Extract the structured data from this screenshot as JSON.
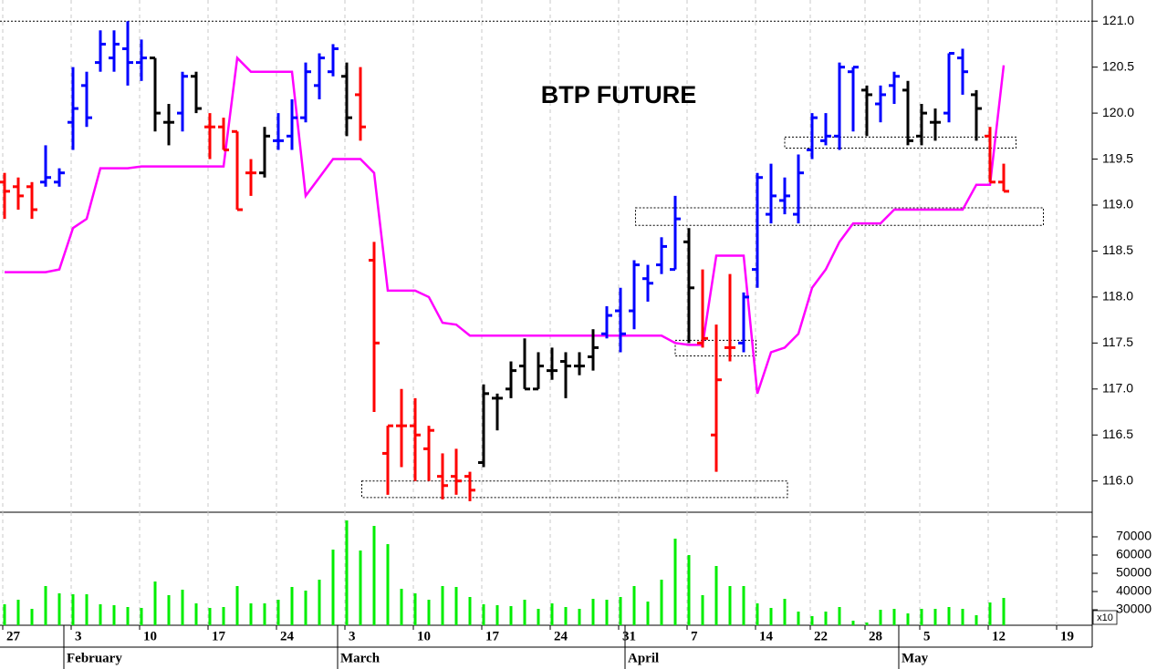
{
  "chart_data": {
    "type": "ohlc",
    "title": "BTP FUTURE",
    "categories": [
      "27",
      null,
      null,
      null,
      null,
      "3",
      null,
      null,
      null,
      null,
      "10",
      null,
      null,
      null,
      null,
      "17",
      null,
      null,
      null,
      null,
      "24",
      null,
      null,
      null,
      null,
      "3",
      null,
      null,
      null,
      null,
      "10",
      null,
      null,
      null,
      null,
      "17",
      null,
      null,
      null,
      null,
      "24",
      null,
      null,
      null,
      null,
      "31",
      null,
      null,
      null,
      null,
      "7",
      null,
      null,
      null,
      null,
      "14",
      null,
      null,
      null,
      "22",
      null,
      null,
      null,
      "28",
      null,
      null,
      null,
      "5",
      null,
      null,
      null,
      null,
      "12",
      null,
      null,
      null,
      null,
      "19"
    ],
    "month_categories": [
      null,
      null,
      null,
      null,
      null,
      "February",
      null,
      null,
      null,
      null,
      null,
      null,
      null,
      null,
      null,
      null,
      null,
      null,
      null,
      null,
      null,
      null,
      null,
      null,
      null,
      "March",
      null,
      null,
      null,
      null,
      null,
      null,
      null,
      null,
      null,
      null,
      null,
      null,
      null,
      null,
      null,
      null,
      null,
      null,
      null,
      null,
      "April",
      null,
      null,
      null,
      null,
      null,
      null,
      null,
      null,
      null,
      null,
      null,
      null,
      null,
      null,
      null,
      null,
      null,
      null,
      null,
      "May",
      null,
      null,
      null,
      null,
      null,
      null,
      null,
      null,
      null,
      null,
      null
    ],
    "open": [
      119.25,
      119.2,
      119.2,
      119.25,
      119.25,
      119.9,
      120.3,
      120.55,
      120.6,
      120.7,
      120.55,
      120.6,
      119.9,
      120.0,
      120.4,
      119.85,
      119.85,
      119.8,
      119.35,
      119.35,
      119.7,
      119.75,
      119.95,
      120.3,
      120.45,
      120.4,
      120.2,
      118.4,
      116.3,
      116.6,
      116.6,
      116.35,
      116.05,
      116.05,
      116.05,
      116.2,
      116.9,
      117.0,
      117.25,
      117.0,
      117.2,
      117.3,
      117.25,
      117.35,
      117.6,
      117.85,
      117.85,
      118.2,
      118.35,
      118.3,
      118.6,
      117.5,
      116.5,
      117.45,
      117.5,
      118.3,
      118.9,
      119.05,
      118.9,
      119.6,
      119.7,
      119.75,
      120.45,
      120.25,
      120.1,
      120.3,
      120.25,
      119.75,
      119.9,
      120.0,
      120.6,
      120.2,
      119.75,
      119.25,
      null,
      null,
      null,
      null
    ],
    "high": [
      119.35,
      119.3,
      119.25,
      119.65,
      119.4,
      120.5,
      120.45,
      120.9,
      120.9,
      121.0,
      120.8,
      120.6,
      120.1,
      120.45,
      120.45,
      120.0,
      119.95,
      119.8,
      119.5,
      119.85,
      120.0,
      120.15,
      120.55,
      120.65,
      120.75,
      120.55,
      120.5,
      118.6,
      116.6,
      117.0,
      116.9,
      116.6,
      116.3,
      116.35,
      116.1,
      117.05,
      116.95,
      117.3,
      117.55,
      117.4,
      117.45,
      117.4,
      117.4,
      117.65,
      117.9,
      118.1,
      118.4,
      118.35,
      118.65,
      119.1,
      118.75,
      118.3,
      117.7,
      118.25,
      118.05,
      119.35,
      119.45,
      119.3,
      119.55,
      120.0,
      120.0,
      120.55,
      120.5,
      120.3,
      120.3,
      120.45,
      120.35,
      120.1,
      120.05,
      120.65,
      120.7,
      120.25,
      119.85,
      119.45,
      null,
      null,
      null,
      null
    ],
    "low": [
      118.85,
      118.95,
      118.85,
      119.2,
      119.2,
      119.6,
      119.85,
      120.45,
      120.45,
      120.3,
      120.35,
      119.8,
      119.65,
      119.8,
      120.0,
      119.5,
      119.6,
      118.95,
      119.1,
      119.3,
      119.6,
      119.6,
      119.9,
      120.15,
      120.4,
      119.75,
      119.7,
      116.75,
      115.85,
      116.15,
      116.0,
      116.0,
      115.8,
      115.85,
      115.78,
      116.15,
      116.55,
      116.9,
      117.0,
      117.0,
      117.1,
      116.9,
      117.15,
      117.2,
      117.55,
      117.4,
      117.65,
      117.95,
      118.25,
      118.3,
      117.5,
      117.45,
      116.1,
      117.3,
      117.4,
      118.1,
      118.8,
      118.9,
      118.8,
      119.5,
      119.65,
      119.6,
      119.8,
      119.75,
      119.9,
      120.1,
      119.65,
      119.65,
      119.7,
      119.9,
      120.2,
      119.7,
      119.25,
      119.15,
      null,
      null,
      null,
      null
    ],
    "close": [
      119.15,
      119.1,
      118.95,
      119.3,
      119.35,
      120.05,
      119.95,
      120.75,
      120.75,
      120.55,
      120.6,
      120.0,
      119.9,
      120.4,
      120.05,
      119.85,
      119.6,
      118.95,
      119.35,
      119.75,
      119.7,
      119.95,
      120.45,
      120.6,
      120.7,
      119.95,
      119.85,
      117.5,
      116.6,
      116.6,
      116.5,
      116.55,
      115.95,
      116.0,
      115.9,
      116.95,
      116.9,
      117.2,
      117.0,
      117.25,
      117.2,
      117.25,
      117.25,
      117.45,
      117.8,
      117.6,
      118.35,
      118.15,
      118.55,
      118.85,
      118.1,
      117.55,
      117.1,
      117.45,
      118.0,
      119.3,
      119.1,
      119.1,
      119.35,
      119.95,
      119.75,
      120.5,
      120.5,
      120.2,
      120.2,
      120.4,
      119.7,
      120.0,
      119.9,
      120.65,
      120.45,
      120.05,
      119.25,
      119.15,
      null,
      null,
      null,
      null
    ],
    "bar_colors": [
      "#ff0000",
      "#ff0000",
      "#ff0000",
      "#0000ff",
      "#0000ff",
      "#0000ff",
      "#0000ff",
      "#0000ff",
      "#0000ff",
      "#0000ff",
      "#0000ff",
      "#000000",
      "#000000",
      "#0000ff",
      "#000000",
      "#ff0000",
      "#ff0000",
      "#ff0000",
      "#ff0000",
      "#000000",
      "#0000ff",
      "#0000ff",
      "#0000ff",
      "#0000ff",
      "#0000ff",
      "#000000",
      "#ff0000",
      "#ff0000",
      "#ff0000",
      "#ff0000",
      "#ff0000",
      "#ff0000",
      "#ff0000",
      "#ff0000",
      "#ff0000",
      "#000000",
      "#000000",
      "#000000",
      "#000000",
      "#000000",
      "#000000",
      "#000000",
      "#000000",
      "#000000",
      "#0000ff",
      "#0000ff",
      "#0000ff",
      "#0000ff",
      "#0000ff",
      "#0000ff",
      "#000000",
      "#ff0000",
      "#ff0000",
      "#ff0000",
      "#0000ff",
      "#0000ff",
      "#0000ff",
      "#0000ff",
      "#0000ff",
      "#0000ff",
      "#0000ff",
      "#0000ff",
      "#0000ff",
      "#000000",
      "#0000ff",
      "#0000ff",
      "#000000",
      "#000000",
      "#000000",
      "#0000ff",
      "#0000ff",
      "#000000",
      "#ff0000",
      "#ff0000",
      null,
      null,
      null,
      null
    ],
    "line": {
      "color": "#ff00ff",
      "values": [
        118.27,
        118.27,
        118.27,
        118.27,
        118.3,
        118.75,
        118.85,
        119.4,
        119.4,
        119.4,
        119.42,
        119.42,
        119.42,
        119.42,
        119.42,
        119.42,
        119.42,
        120.6,
        120.45,
        120.45,
        120.45,
        120.45,
        119.1,
        119.3,
        119.5,
        119.5,
        119.5,
        119.35,
        118.07,
        118.07,
        118.07,
        118.0,
        117.72,
        117.7,
        117.58,
        117.58,
        117.58,
        117.58,
        117.58,
        117.58,
        117.58,
        117.58,
        117.58,
        117.58,
        117.58,
        117.58,
        117.58,
        117.58,
        117.58,
        117.5,
        117.48,
        117.48,
        118.45,
        118.45,
        118.45,
        116.95,
        117.4,
        117.45,
        117.6,
        118.1,
        118.3,
        118.6,
        118.8,
        118.8,
        118.8,
        118.95,
        118.95,
        118.95,
        118.95,
        118.95,
        118.95,
        119.22,
        119.22,
        120.52,
        null,
        null,
        null,
        null
      ]
    },
    "ylim": [
      115.66,
      121.23
    ],
    "yticks": [
      {
        "value": 116,
        "label": "116.0"
      },
      116.5,
      {
        "value": 117,
        "label": "117.0"
      },
      117.5,
      {
        "value": 118,
        "label": "118.0"
      },
      118.5,
      {
        "value": 119,
        "label": "119.0"
      },
      119.5,
      {
        "value": 120,
        "label": "120.0"
      },
      120.5,
      {
        "value": 121,
        "label": "121.0"
      }
    ],
    "reference_line": 121.0,
    "zones": [
      {
        "x": [
          26.1,
          57.2
        ],
        "ylim": [
          115.82,
          116.0
        ]
      },
      {
        "x": [
          46.1,
          75.9
        ],
        "ylim": [
          118.78,
          118.97
        ]
      },
      {
        "x": [
          49.0,
          54.9
        ],
        "ylim": [
          117.36,
          117.53
        ]
      },
      {
        "x": [
          57.0,
          73.9
        ],
        "ylim": [
          119.62,
          119.74
        ]
      }
    ],
    "volume": {
      "color": "#00ee00",
      "values": [
        33000,
        35500,
        30500,
        43000,
        39000,
        38500,
        38500,
        33000,
        32500,
        31500,
        31000,
        45500,
        38000,
        41000,
        33500,
        31000,
        31500,
        43000,
        33500,
        33500,
        35500,
        42500,
        40500,
        46500,
        63000,
        79000,
        62500,
        76000,
        66000,
        41500,
        39000,
        35500,
        43000,
        42500,
        37000,
        33000,
        32500,
        32000,
        35500,
        30500,
        33500,
        31500,
        30500,
        36000,
        35500,
        37000,
        43000,
        34500,
        46500,
        69000,
        60000,
        38000,
        54000,
        43000,
        43000,
        33500,
        31000,
        36000,
        29000,
        26500,
        29000,
        31500,
        24000,
        23000,
        30000,
        30500,
        28000,
        30500,
        30500,
        31500,
        30500,
        27000,
        34000,
        36500,
        null,
        null,
        null,
        null
      ],
      "ylim": [
        21500,
        83500
      ],
      "yticks": [
        30000,
        40000,
        50000,
        60000,
        70000
      ],
      "note": "x10"
    },
    "grid": true
  }
}
